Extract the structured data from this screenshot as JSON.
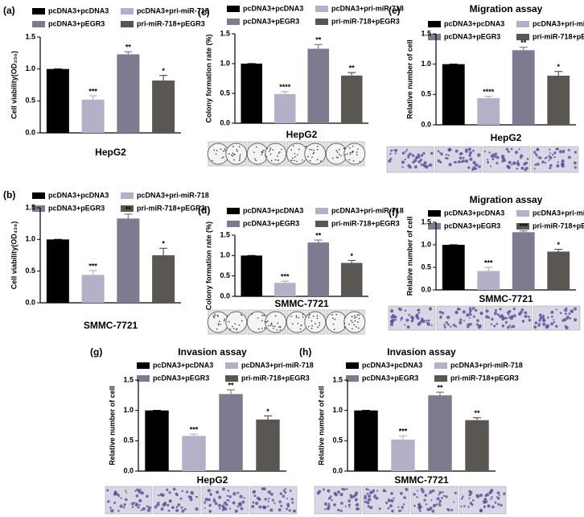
{
  "chart_data": [
    {
      "type": "bar",
      "panel": "(a)",
      "ylabel": "Cell viability(OD₄₅₀)",
      "xlabel": "HepG2",
      "categories": [
        "pcDNA3+pcDNA3",
        "pcDNA3+pri-miR-718",
        "pcDNA3+pEGR3",
        "pri-miR-718+pEGR3"
      ],
      "colors": [
        "#000000",
        "#b4b0c8",
        "#7e7a90",
        "#5a5652"
      ],
      "values": [
        1.0,
        0.52,
        1.23,
        0.82
      ],
      "errors": [
        0,
        0.06,
        0.04,
        0.08
      ],
      "annotations": [
        null,
        "***",
        "**",
        "*"
      ],
      "ylim": [
        0,
        1.5
      ],
      "yticks": [
        {
          "value": 0,
          "label": "0.0"
        },
        {
          "value": 0.5,
          "label": "0.5"
        },
        {
          "value": 1,
          "label": "1.0"
        },
        {
          "value": 1.5,
          "label": "1.5"
        }
      ]
    },
    {
      "type": "bar",
      "panel": "(b)",
      "ylabel": "Cell viability(OD₄₅₀)",
      "xlabel": "SMMC-7721",
      "categories": [
        "pcDNA3+pcDNA3",
        "pcDNA3+pri-miR-718",
        "pcDNA3+pEGR3",
        "pri-miR-718+pEGR3"
      ],
      "colors": [
        "#000000",
        "#b4b0c8",
        "#7e7a90",
        "#5a5652"
      ],
      "values": [
        1.0,
        0.44,
        1.33,
        0.75
      ],
      "errors": [
        0,
        0.07,
        0.07,
        0.11
      ],
      "annotations": [
        null,
        "***",
        "**",
        "*"
      ],
      "ylim": [
        0,
        1.5
      ],
      "yticks": [
        {
          "value": 0,
          "label": "0.0"
        },
        {
          "value": 0.5,
          "label": "0.5"
        },
        {
          "value": 1,
          "label": "1.0"
        },
        {
          "value": 1.5,
          "label": "1.5"
        }
      ]
    },
    {
      "type": "bar",
      "panel": "(c)",
      "ylabel": "Colony formation rate (%)",
      "xlabel": "HepG2",
      "categories": [
        "pcDNA3+pcDNA3",
        "pcDNA3+pri-miR-718",
        "pcDNA3+pEGR3",
        "pri-miR-718+pEGR3"
      ],
      "colors": [
        "#000000",
        "#b4b0c8",
        "#7e7a90",
        "#5a5652"
      ],
      "values": [
        1.0,
        0.49,
        1.25,
        0.8
      ],
      "errors": [
        0,
        0.04,
        0.07,
        0.05
      ],
      "annotations": [
        null,
        "****",
        "**",
        "**"
      ],
      "ylim": [
        0,
        1.5
      ],
      "yticks": [
        {
          "value": 0,
          "label": "0.0"
        },
        {
          "value": 0.5,
          "label": "0.5"
        },
        {
          "value": 1,
          "label": "1.0"
        },
        {
          "value": 1.5,
          "label": "1.5"
        }
      ]
    },
    {
      "type": "bar",
      "panel": "(d)",
      "ylabel": "Colony formation rate (%)",
      "xlabel": "SMMC-7721",
      "categories": [
        "pcDNA3+pcDNA3",
        "pcDNA3+pri-miR-718",
        "pcDNA3+pEGR3",
        "pri-miR-718+pEGR3"
      ],
      "colors": [
        "#000000",
        "#b4b0c8",
        "#7e7a90",
        "#5a5652"
      ],
      "values": [
        1.0,
        0.33,
        1.32,
        0.82
      ],
      "errors": [
        0,
        0.04,
        0.06,
        0.06
      ],
      "annotations": [
        null,
        "***",
        "**",
        "*"
      ],
      "ylim": [
        0,
        1.5
      ],
      "yticks": [
        {
          "value": 0,
          "label": "0.0"
        },
        {
          "value": 0.5,
          "label": "0.5"
        },
        {
          "value": 1,
          "label": "1.0"
        },
        {
          "value": 1.5,
          "label": "1.5"
        }
      ]
    },
    {
      "type": "bar",
      "panel": "(e)",
      "title": "Migration assay",
      "ylabel": "Relative number of cell",
      "xlabel": "HepG2",
      "categories": [
        "pcDNA3+pcDNA3",
        "pcDNA3+pri-miR-718",
        "pcDNA3+pEGR3",
        "pri-miR-718+pEGR3"
      ],
      "colors": [
        "#000000",
        "#b4b0c8",
        "#7e7a90",
        "#5a5652"
      ],
      "values": [
        1.0,
        0.44,
        1.23,
        0.81
      ],
      "errors": [
        0,
        0.03,
        0.05,
        0.07
      ],
      "annotations": [
        null,
        "****",
        "**",
        "*"
      ],
      "ylim": [
        0,
        1.5
      ],
      "yticks": [
        {
          "value": 0,
          "label": "0.0"
        },
        {
          "value": 0.5,
          "label": "0.5"
        },
        {
          "value": 1,
          "label": "1.0"
        },
        {
          "value": 1.5,
          "label": "1.5"
        }
      ]
    },
    {
      "type": "bar",
      "panel": "(f)",
      "title": "Migration assay",
      "ylabel": "Relative number of cell",
      "xlabel": "SMMC-7721",
      "categories": [
        "pcDNA3+pcDNA3",
        "pcDNA3+pri-miR-718",
        "pcDNA3+pEGR3",
        "pri-miR-718+pEGR3"
      ],
      "colors": [
        "#000000",
        "#b4b0c8",
        "#7e7a90",
        "#5a5652"
      ],
      "values": [
        1.0,
        0.42,
        1.28,
        0.85
      ],
      "errors": [
        0,
        0.08,
        0.03,
        0.05
      ],
      "annotations": [
        null,
        "***",
        "***",
        "*"
      ],
      "ylim": [
        0,
        1.5
      ],
      "yticks": [
        {
          "value": 0,
          "label": "0.0"
        },
        {
          "value": 0.5,
          "label": "0.5"
        },
        {
          "value": 1,
          "label": "1.0"
        },
        {
          "value": 1.5,
          "label": "1.5"
        }
      ]
    },
    {
      "type": "bar",
      "panel": "(g)",
      "title": "Invasion assay",
      "ylabel": "Relative number of cell",
      "xlabel": "HepG2",
      "categories": [
        "pcDNA3+pcDNA3",
        "pcDNA3+pri-miR-718",
        "pcDNA3+pEGR3",
        "pri-miR-718+pEGR3"
      ],
      "colors": [
        "#000000",
        "#b4b0c8",
        "#7e7a90",
        "#5a5652"
      ],
      "values": [
        1.0,
        0.58,
        1.27,
        0.85
      ],
      "errors": [
        0,
        0.03,
        0.07,
        0.06
      ],
      "annotations": [
        null,
        "***",
        "**",
        "*"
      ],
      "ylim": [
        0,
        1.5
      ],
      "yticks": [
        {
          "value": 0,
          "label": "0.0"
        },
        {
          "value": 0.5,
          "label": "0.5"
        },
        {
          "value": 1,
          "label": "1.0"
        },
        {
          "value": 1.5,
          "label": "1.5"
        }
      ]
    },
    {
      "type": "bar",
      "panel": "(h)",
      "title": "Invasion assay",
      "ylabel": "Relative number of cell",
      "xlabel": "SMMC-7721",
      "categories": [
        "pcDNA3+pcDNA3",
        "pcDNA3+pri-miR-718",
        "pcDNA3+pEGR3",
        "pri-miR-718+pEGR3"
      ],
      "colors": [
        "#000000",
        "#b4b0c8",
        "#7e7a90",
        "#5a5652"
      ],
      "values": [
        1.0,
        0.52,
        1.25,
        0.84
      ],
      "errors": [
        0,
        0.06,
        0.05,
        0.04
      ],
      "annotations": [
        null,
        "***",
        "**",
        "**"
      ],
      "ylim": [
        0,
        1.5
      ],
      "yticks": [
        {
          "value": 0,
          "label": "0.0"
        },
        {
          "value": 0.5,
          "label": "0.5"
        },
        {
          "value": 1,
          "label": "1.0"
        },
        {
          "value": 1.5,
          "label": "1.5"
        }
      ]
    }
  ]
}
